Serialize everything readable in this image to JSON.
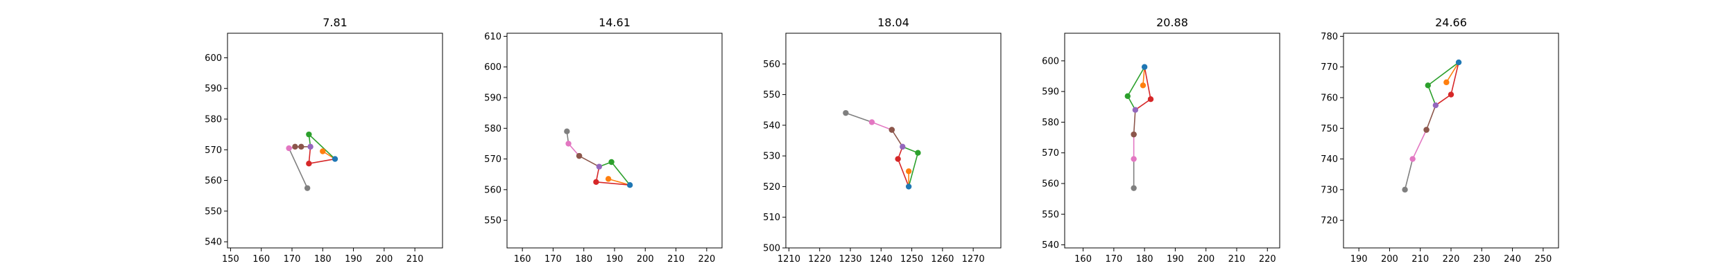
{
  "chart_data": [
    {
      "type": "line",
      "title": "7.81",
      "xlim": [
        149,
        219
      ],
      "ylim": [
        538,
        608
      ],
      "xticks": [
        150,
        160,
        170,
        180,
        190,
        200,
        210
      ],
      "yticks": [
        540,
        550,
        560,
        570,
        580,
        590,
        600
      ],
      "grid": false,
      "points": [
        [
          184,
          567
        ],
        [
          180,
          569.5
        ],
        [
          175.5,
          565.5
        ],
        [
          175.5,
          575
        ],
        [
          176,
          571
        ],
        [
          173,
          571
        ],
        [
          169,
          570.5
        ],
        [
          175,
          557.5
        ],
        [
          171,
          571
        ]
      ]
    },
    {
      "type": "line",
      "title": "14.61",
      "xlim": [
        155,
        225
      ],
      "ylim": [
        541,
        611
      ],
      "xticks": [
        160,
        170,
        180,
        190,
        200,
        210,
        220
      ],
      "yticks": [
        550,
        560,
        570,
        580,
        590,
        600,
        610
      ],
      "grid": false,
      "points": [
        [
          195,
          561.5
        ],
        [
          188,
          563.5
        ],
        [
          184,
          562.5
        ],
        [
          189,
          569
        ],
        [
          185,
          567.5
        ],
        [
          178.5,
          571
        ],
        [
          175,
          575
        ],
        [
          174.5,
          579
        ],
        [
          178.5,
          571
        ]
      ]
    },
    {
      "type": "line",
      "title": "18.04",
      "xlim": [
        1209,
        1279
      ],
      "ylim": [
        500,
        570
      ],
      "xticks": [
        1210,
        1220,
        1230,
        1240,
        1250,
        1260,
        1270
      ],
      "yticks": [
        500,
        510,
        520,
        530,
        540,
        550,
        560
      ],
      "grid": false,
      "points": [
        [
          1249,
          520
        ],
        [
          1249,
          525
        ],
        [
          1245.5,
          529
        ],
        [
          1252,
          531
        ],
        [
          1247,
          533
        ],
        [
          1243.5,
          538.5
        ],
        [
          1237,
          541
        ],
        [
          1228.5,
          544
        ],
        [
          1243.5,
          538.5
        ]
      ]
    },
    {
      "type": "line",
      "title": "20.88",
      "xlim": [
        154,
        224
      ],
      "ylim": [
        539,
        609
      ],
      "xticks": [
        160,
        170,
        180,
        190,
        200,
        210,
        220
      ],
      "yticks": [
        540,
        550,
        560,
        570,
        580,
        590,
        600
      ],
      "grid": false,
      "points": [
        [
          180,
          598
        ],
        [
          179.5,
          592
        ],
        [
          182,
          587.5
        ],
        [
          174.5,
          588.5
        ],
        [
          177,
          584
        ],
        [
          176.5,
          576
        ],
        [
          176.5,
          568
        ],
        [
          176.5,
          558.5
        ],
        [
          176.5,
          576
        ]
      ]
    },
    {
      "type": "line",
      "title": "24.66",
      "xlim": [
        185,
        255
      ],
      "ylim": [
        711,
        781
      ],
      "xticks": [
        190,
        200,
        210,
        220,
        230,
        240,
        250
      ],
      "yticks": [
        720,
        730,
        740,
        750,
        760,
        770,
        780
      ],
      "grid": false,
      "points": [
        [
          222.5,
          771.5
        ],
        [
          218.5,
          765
        ],
        [
          220,
          761
        ],
        [
          212.5,
          764
        ],
        [
          215,
          757.5
        ],
        [
          212,
          749.5
        ],
        [
          207.5,
          740
        ],
        [
          205,
          730
        ],
        [
          212,
          749.5
        ]
      ]
    }
  ],
  "segment_colors": [
    "#ff7f0e",
    "#d62728",
    "#2ca02c",
    "#8c564b",
    "#e377c2",
    "#7f7f7f",
    "#9467bd"
  ],
  "point_colors": [
    "#1f77b4",
    "#ff7f0e",
    "#d62728",
    "#2ca02c",
    "#9467bd",
    "#8c564b",
    "#e377c2",
    "#7f7f7f",
    "#8c564b"
  ]
}
